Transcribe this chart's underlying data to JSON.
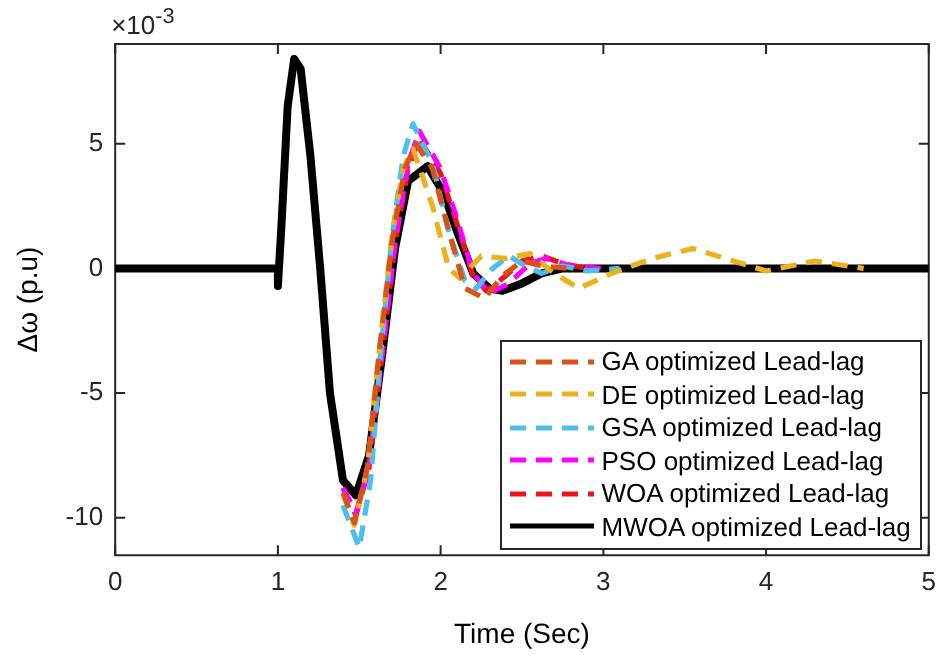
{
  "chart_data": {
    "type": "line",
    "xlabel": "Time (Sec)",
    "ylabel": "Δω (p.u)",
    "annotations": [
      "×10$^{-3}$"
    ],
    "xlim": [
      0,
      5
    ],
    "xticks": [
      0,
      1,
      2,
      3,
      4,
      5
    ],
    "ylim": [
      -11.5,
      9
    ],
    "yticks": [
      -10,
      -5,
      0,
      5
    ],
    "grid": false,
    "legend": "bottom right",
    "marker": "none",
    "series": [
      {
        "name": "GA optimized Lead-lag",
        "color": "#d95319",
        "line_style": "dashed",
        "x": [
          1.4,
          1.47,
          1.55,
          1.62,
          1.7,
          1.78,
          1.85,
          1.95,
          2.05,
          2.15,
          2.27,
          2.38,
          2.5,
          2.62,
          2.8
        ],
        "values": [
          -9,
          -10.2,
          -8,
          -3.5,
          1,
          4,
          5,
          4,
          1.5,
          -0.8,
          -1.2,
          -0.3,
          0.3,
          0.1,
          0
        ]
      },
      {
        "name": "DE optimized Lead-lag",
        "color": "#edb120",
        "line_style": "dashed",
        "x": [
          1.4,
          1.47,
          1.55,
          1.62,
          1.7,
          1.77,
          1.83,
          1.95,
          2.05,
          2.12,
          2.25,
          2.4,
          2.55,
          2.7,
          2.85,
          3.05,
          3.3,
          3.55,
          3.8,
          4,
          4.3,
          4.6
        ],
        "values": [
          -9,
          -10.3,
          -8,
          -3.5,
          1.2,
          4,
          4.8,
          2.5,
          0,
          -0.4,
          0.5,
          0.4,
          0.6,
          -0.2,
          -0.8,
          -0.2,
          0.4,
          0.8,
          0.3,
          -0.1,
          0.3,
          0
        ]
      },
      {
        "name": "GSA optimized Lead-lag",
        "color": "#4dbeee",
        "line_style": "dashed",
        "x": [
          1.4,
          1.5,
          1.57,
          1.63,
          1.7,
          1.77,
          1.83,
          1.95,
          2.05,
          2.15,
          2.22,
          2.32,
          2.42,
          2.52,
          2.62,
          2.75,
          2.9,
          3.1
        ],
        "values": [
          -9.5,
          -11.2,
          -8.5,
          -3.5,
          1.2,
          4.5,
          5.8,
          4.2,
          1.5,
          -0.5,
          -0.8,
          0,
          0.5,
          0.1,
          -0.2,
          0.1,
          -0.1,
          0
        ]
      },
      {
        "name": "PSO optimized Lead-lag",
        "color": "#ff00ff",
        "line_style": "dashed",
        "x": [
          1.4,
          1.48,
          1.56,
          1.64,
          1.72,
          1.8,
          1.87,
          2,
          2.1,
          2.2,
          2.3,
          2.42,
          2.55,
          2.65,
          2.8,
          3
        ],
        "values": [
          -8.8,
          -9.8,
          -8,
          -3.5,
          1,
          4.2,
          5.5,
          4,
          2,
          -0.2,
          -1,
          -0.6,
          0.2,
          0.4,
          0.1,
          0
        ]
      },
      {
        "name": "WOA optimized Lead-lag",
        "color": "#e8151b",
        "line_style": "dashed",
        "x": [
          1.4,
          1.48,
          1.56,
          1.64,
          1.72,
          1.8,
          1.87,
          2,
          2.1,
          2.2,
          2.28,
          2.4,
          2.5,
          2.62,
          2.75,
          2.9
        ],
        "values": [
          -8.8,
          -9.9,
          -8,
          -3.5,
          1,
          4,
          5.2,
          3.8,
          1.8,
          -0.3,
          -0.9,
          -0.3,
          0.3,
          0.5,
          0.2,
          0
        ]
      },
      {
        "name": "MWOA optimized Lead-lag",
        "color": "#000000",
        "line_style": "solid",
        "x": [
          0,
          1,
          1,
          1.02,
          1.06,
          1.1,
          1.14,
          1.2,
          1.26,
          1.32,
          1.4,
          1.48,
          1.56,
          1.64,
          1.72,
          1.8,
          1.92,
          2.02,
          2.1,
          2.2,
          2.3,
          2.38,
          2.5,
          2.62,
          2.75,
          3,
          5
        ],
        "values": [
          0,
          0,
          -0.7,
          1.5,
          6.5,
          8.4,
          8,
          4.5,
          0,
          -5,
          -8.5,
          -9.1,
          -7.5,
          -3.5,
          0.8,
          3.5,
          4.1,
          3,
          1.5,
          -0.2,
          -0.8,
          -0.9,
          -0.6,
          -0.2,
          0,
          0,
          0
        ]
      }
    ]
  }
}
